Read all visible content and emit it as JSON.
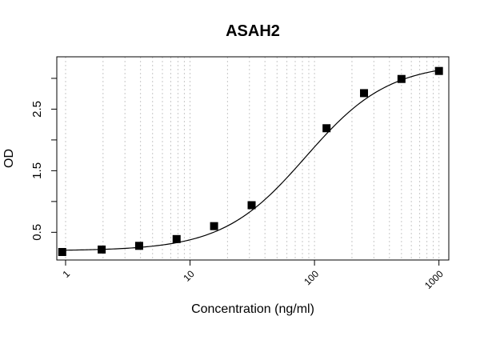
{
  "chart_data": {
    "type": "scatter",
    "title": "ASAH2",
    "xlabel": "Concentration (ng/ml)",
    "ylabel": "OD",
    "x_scale": "log",
    "xlim": [
      0.85,
      1200
    ],
    "ylim": [
      0.05,
      3.35
    ],
    "x_ticks": [
      1,
      10,
      100,
      1000
    ],
    "x_tick_labels": [
      "1",
      "10",
      "100",
      "1000"
    ],
    "x_minor_ticks": [
      2,
      3,
      4,
      5,
      6,
      7,
      8,
      9,
      20,
      30,
      40,
      50,
      60,
      70,
      80,
      90,
      200,
      300,
      400,
      500,
      600,
      700,
      800,
      900
    ],
    "y_ticks": [
      0.5,
      1,
      1.5,
      2,
      2.5,
      3
    ],
    "y_tick_labels": [
      "0.5",
      "",
      "1.5",
      "",
      "2.5",
      ""
    ],
    "grid": "vertical-dotted",
    "points": {
      "x": [
        0.94,
        1.95,
        3.9,
        7.8,
        15.6,
        31.25,
        125,
        250,
        500,
        1000
      ],
      "y": [
        0.18,
        0.22,
        0.28,
        0.39,
        0.6,
        0.94,
        2.19,
        2.76,
        2.99,
        3.12
      ]
    },
    "fit_curve": {
      "model": "4PL",
      "bottom": 0.2,
      "top": 3.25,
      "ec50": 85,
      "hill": 1.3
    }
  }
}
